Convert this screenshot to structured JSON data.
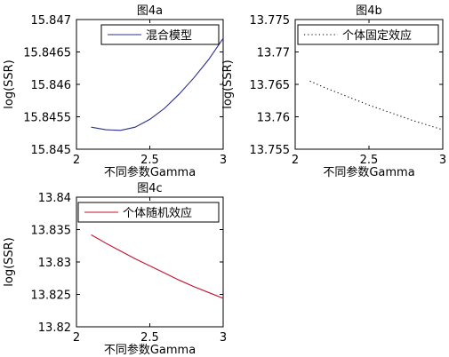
{
  "chart_data": [
    {
      "id": "a",
      "type": "line",
      "title": "图4a",
      "xlabel": "不同参数Gamma",
      "ylabel": "log(SSR)",
      "xlim": [
        2,
        3
      ],
      "ylim": [
        15.845,
        15.847
      ],
      "xticks": [
        "2",
        "2.5",
        "3"
      ],
      "yticks": [
        "15.845",
        "15.8455",
        "15.846",
        "15.8465",
        "15.847"
      ],
      "legend_position": "top-right",
      "grid": false,
      "series": [
        {
          "name": "混合模型",
          "color": "#2b2f8f",
          "dash": "solid",
          "x": [
            2.1,
            2.2,
            2.3,
            2.4,
            2.5,
            2.6,
            2.7,
            2.8,
            2.9,
            3.0
          ],
          "y": [
            15.84534,
            15.8453,
            15.84529,
            15.84534,
            15.84546,
            15.84563,
            15.84585,
            15.8461,
            15.84638,
            15.84671
          ]
        }
      ]
    },
    {
      "id": "b",
      "type": "line",
      "title": "图4b",
      "xlabel": "不同参数Gamma",
      "ylabel": "log(SSR)",
      "xlim": [
        2,
        3
      ],
      "ylim": [
        13.755,
        13.775
      ],
      "xticks": [
        "2",
        "2.5",
        "3"
      ],
      "yticks": [
        "13.755",
        "13.76",
        "13.765",
        "13.77",
        "13.775"
      ],
      "legend_position": "top-right",
      "grid": false,
      "series": [
        {
          "name": "个体固定效应",
          "color": "#000000",
          "dash": "dotted",
          "x": [
            2.1,
            2.2,
            2.3,
            2.4,
            2.5,
            2.6,
            2.7,
            2.8,
            2.9,
            3.0
          ],
          "y": [
            13.7655,
            13.7645,
            13.7636,
            13.7627,
            13.7618,
            13.761,
            13.7602,
            13.7594,
            13.7587,
            13.758
          ]
        }
      ]
    },
    {
      "id": "c",
      "type": "line",
      "title": "图4c",
      "xlabel": "不同参数Gamma",
      "ylabel": "log(SSR)",
      "xlim": [
        2,
        3
      ],
      "ylim": [
        13.82,
        13.84
      ],
      "xticks": [
        "2",
        "2.5",
        "3"
      ],
      "yticks": [
        "13.82",
        "13.825",
        "13.83",
        "13.835",
        "13.84"
      ],
      "legend_position": "top-right",
      "grid": false,
      "series": [
        {
          "name": "个体随机效应",
          "color": "#c8102e",
          "dash": "solid",
          "x": [
            2.1,
            2.2,
            2.3,
            2.4,
            2.5,
            2.6,
            2.7,
            2.8,
            2.9,
            3.0
          ],
          "y": [
            13.8342,
            13.8329,
            13.8317,
            13.8305,
            13.8294,
            13.8283,
            13.8272,
            13.8262,
            13.8253,
            13.8244
          ]
        }
      ]
    }
  ]
}
